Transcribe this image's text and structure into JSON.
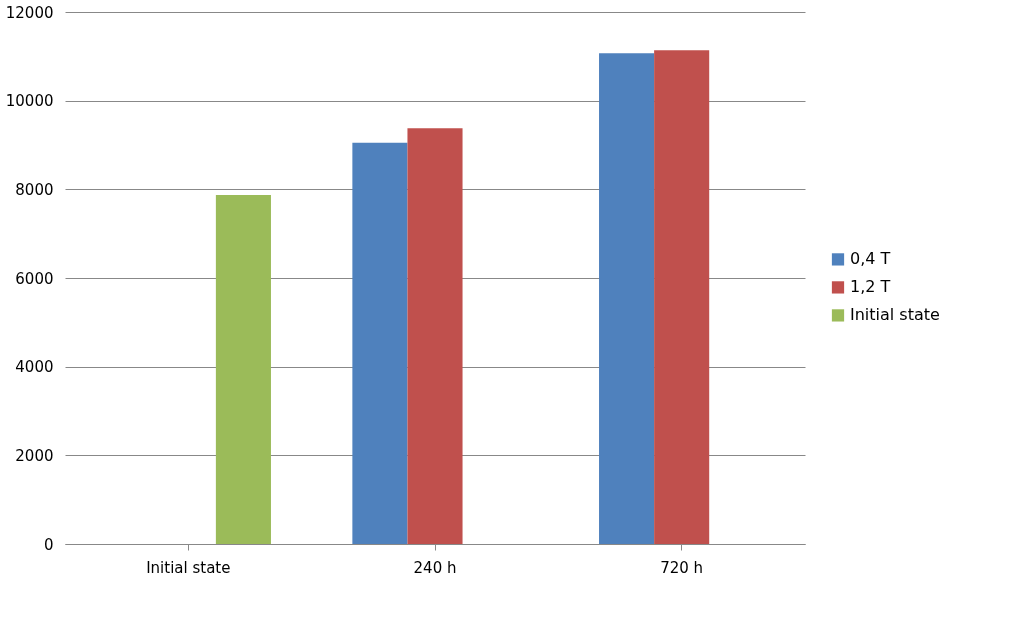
{
  "chart_data": {
    "type": "bar",
    "categories": [
      "Initial state",
      "240 h",
      "720 h"
    ],
    "series": [
      {
        "name": "0,4 T",
        "color": "#4f81bd",
        "values": [
          null,
          9050,
          11070
        ]
      },
      {
        "name": "1,2 T",
        "color": "#c0504d",
        "values": [
          null,
          9380,
          11140
        ]
      },
      {
        "name": "Initial state",
        "color": "#9bbb59",
        "values": [
          7870,
          null,
          null
        ]
      }
    ],
    "ylim": [
      0,
      12000
    ],
    "yticks": [
      0,
      2000,
      4000,
      6000,
      8000,
      10000,
      12000
    ],
    "grid": "y",
    "legend": "right"
  }
}
